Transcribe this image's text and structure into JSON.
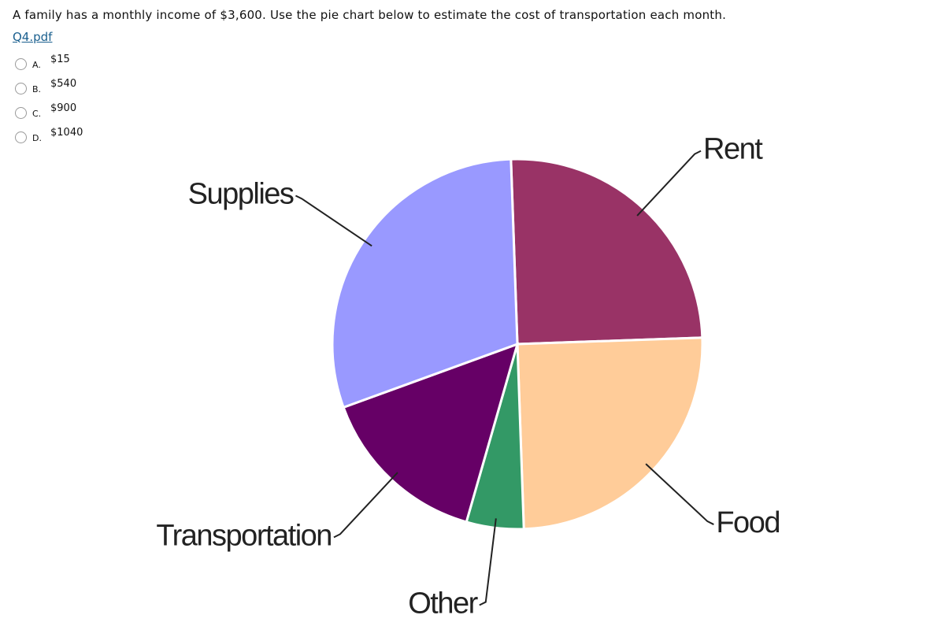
{
  "question": "A family has a monthly income of $3,600.  Use the pie chart below to estimate the cost of transportation each month.",
  "link": "Q4.pdf",
  "options": [
    {
      "letter": "A.",
      "text": "$15"
    },
    {
      "letter": "B.",
      "text": "$540"
    },
    {
      "letter": "C.",
      "text": "$900"
    },
    {
      "letter": "D.",
      "text": "$1040"
    }
  ],
  "chart_data": {
    "type": "pie",
    "categories": [
      "Rent",
      "Food",
      "Other",
      "Transportation",
      "Supplies"
    ],
    "values": [
      25,
      25,
      5,
      15,
      30
    ],
    "colors": [
      "#993366",
      "#ffcc99",
      "#339966",
      "#660066",
      "#9999ff"
    ]
  }
}
